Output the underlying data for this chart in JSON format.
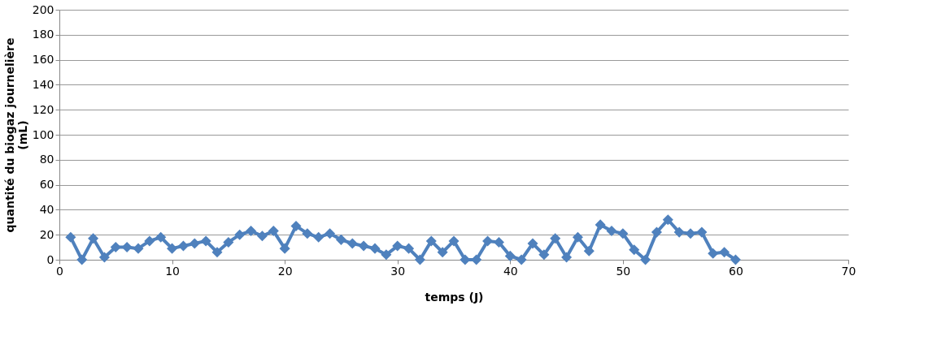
{
  "chart_data": {
    "type": "line",
    "xlabel": "temps (J)",
    "ylabel": "quantité du biogaz journelière (mL)",
    "x": [
      1,
      2,
      3,
      4,
      5,
      6,
      7,
      8,
      9,
      10,
      11,
      12,
      13,
      14,
      15,
      16,
      17,
      18,
      19,
      20,
      21,
      22,
      23,
      24,
      25,
      26,
      27,
      28,
      29,
      30,
      31,
      32,
      33,
      34,
      35,
      36,
      37,
      38,
      39,
      40,
      41,
      42,
      43,
      44,
      45,
      46,
      47,
      48,
      49,
      50,
      51,
      52,
      53,
      54,
      55,
      56,
      57,
      58,
      59,
      60
    ],
    "series": [
      {
        "color": "#4f81bd",
        "values": [
          18,
          0,
          17,
          2,
          10,
          10,
          9,
          15,
          18,
          9,
          11,
          13,
          15,
          6,
          14,
          20,
          23,
          19,
          23,
          9,
          27,
          21,
          18,
          21,
          16,
          13,
          11,
          9,
          4,
          11,
          9,
          0,
          15,
          6,
          15,
          0,
          0,
          15,
          14,
          3,
          0,
          13,
          4,
          17,
          2,
          18,
          7,
          28,
          23,
          21,
          8,
          0,
          22,
          32,
          22,
          21,
          22,
          5,
          6,
          0
        ]
      }
    ],
    "xlim": [
      0,
      70
    ],
    "xticks": [
      0,
      10,
      20,
      30,
      40,
      50,
      60,
      70
    ],
    "ylim": [
      0,
      200
    ],
    "yticks": [
      0,
      20,
      40,
      60,
      80,
      100,
      120,
      140,
      160,
      180,
      200
    ],
    "grid": "y",
    "marker": "diamond",
    "line_style": "solid"
  }
}
